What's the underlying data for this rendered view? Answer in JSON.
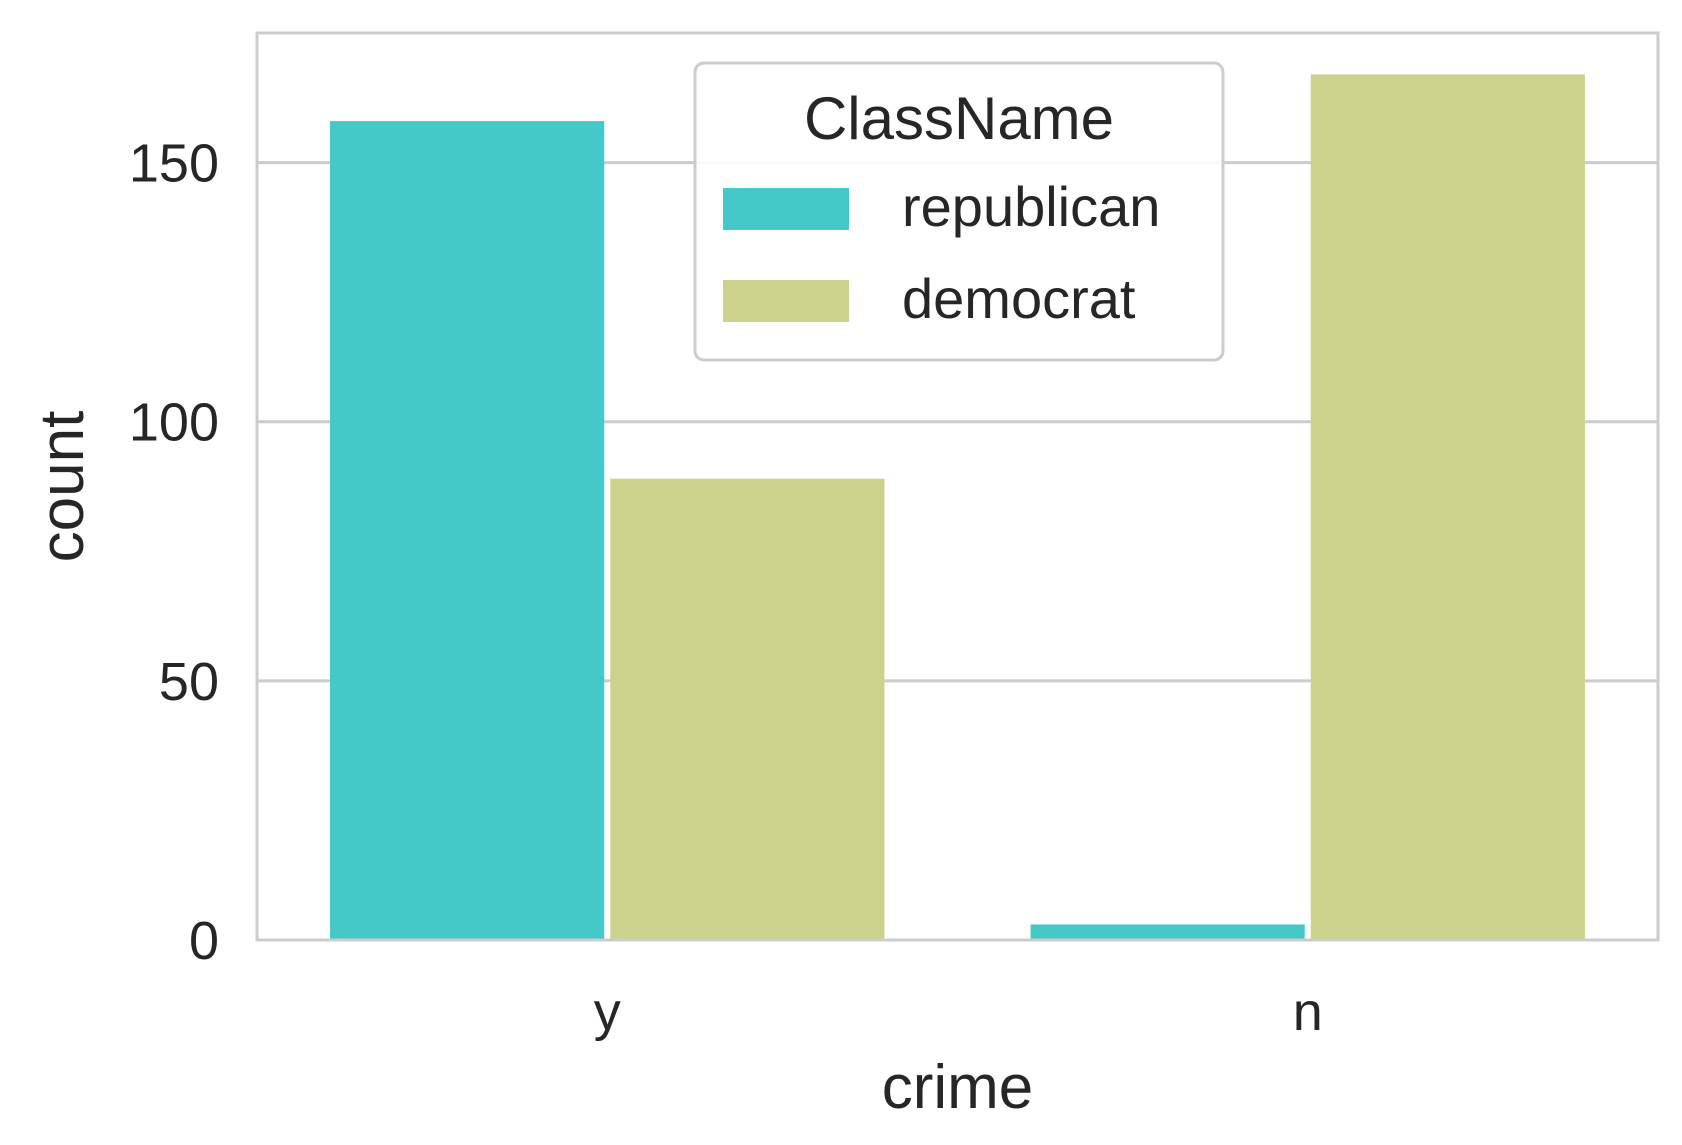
{
  "chart_data": {
    "type": "bar",
    "title": "",
    "xlabel": "crime",
    "ylabel": "count",
    "categories": [
      "y",
      "n"
    ],
    "series": [
      {
        "name": "republican",
        "color": "#44c8c8",
        "values": [
          158,
          3
        ]
      },
      {
        "name": "democrat",
        "color": "#ccd28c",
        "values": [
          89,
          167
        ]
      }
    ],
    "ylim": [
      0,
      175
    ],
    "yticks": [
      0,
      50,
      100,
      150
    ],
    "grid": true,
    "legend": {
      "title": "ClassName",
      "placement": "top-center"
    }
  }
}
